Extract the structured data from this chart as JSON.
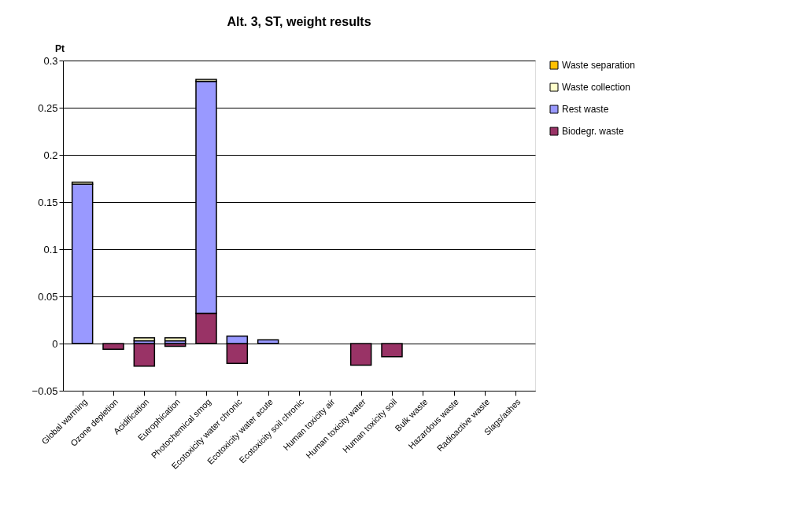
{
  "chart_data": {
    "type": "bar",
    "title": "Alt. 3, ST, weight results",
    "ylabel": "Pt",
    "stacked": true,
    "legend": "right",
    "grid": "y",
    "categories": [
      "Global warming",
      "Ozone depletion",
      "Acidification",
      "Eutrophication",
      "Photochemical smog",
      "Ecotoxicity water chronic",
      "Ecotoxicity water acute",
      "Ecotoxicity soil chronic",
      "Human toxicity air",
      "Human toxicity water",
      "Human toxicity soil",
      "Bulk waste",
      "Hazardous waste",
      "Radioactive waste",
      "Slags/ashes"
    ],
    "series": [
      {
        "name": "Biodegr. waste",
        "color": "#993366",
        "values": [
          null,
          -0.006,
          -0.024,
          -0.003,
          0.032,
          -0.021,
          null,
          null,
          null,
          -0.023,
          -0.014,
          null,
          null,
          null,
          null
        ]
      },
      {
        "name": "Rest waste",
        "color": "#9999ff",
        "values": [
          0.169,
          null,
          0.003,
          0.003,
          0.246,
          0.008,
          0.004,
          null,
          null,
          null,
          null,
          null,
          null,
          null,
          null
        ]
      },
      {
        "name": "Waste collection",
        "color": "#ffffcc",
        "values": [
          0.002,
          null,
          0.003,
          0.003,
          0.002,
          null,
          null,
          null,
          null,
          null,
          null,
          null,
          null,
          null,
          null
        ]
      },
      {
        "name": "Waste separation",
        "color": "#ffc000",
        "values": [
          null,
          null,
          null,
          null,
          null,
          null,
          null,
          null,
          null,
          null,
          null,
          null,
          null,
          null,
          null
        ]
      }
    ],
    "ylim": [
      -0.05,
      0.3
    ],
    "yticks": [
      -0.05,
      0,
      0.05,
      0.1,
      0.15,
      0.2,
      0.25,
      0.3
    ]
  }
}
